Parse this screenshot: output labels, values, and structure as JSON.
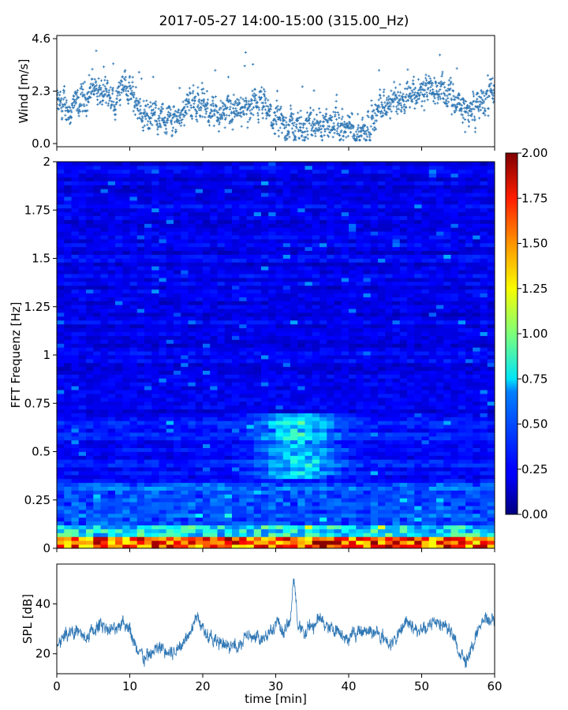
{
  "title": "2017-05-27 14:00-15:00 (315.00_Hz)",
  "chart_data": [
    {
      "type": "scatter",
      "panel": "wind",
      "ylabel": "Wind [m/s]",
      "xlabel": "",
      "xlim": [
        0,
        60
      ],
      "ylim": [
        0,
        4.6
      ],
      "yticks": [
        "0.0",
        "2.3",
        "4.6"
      ],
      "marker": "plus",
      "color": "#2f77b4",
      "trend": {
        "x": [
          0,
          2,
          4,
          5,
          6,
          8,
          9,
          10,
          12,
          14,
          16,
          18,
          20,
          22,
          24,
          26,
          28,
          30,
          32,
          34,
          36,
          38,
          40,
          42,
          44,
          46,
          48,
          50,
          52,
          54,
          56,
          58,
          60
        ],
        "y": [
          1.7,
          1.5,
          2.0,
          2.6,
          2.2,
          1.6,
          3.0,
          2.2,
          1.3,
          1.2,
          1.0,
          1.8,
          1.7,
          1.3,
          1.5,
          1.3,
          1.7,
          0.9,
          0.8,
          0.7,
          0.9,
          0.8,
          0.6,
          0.6,
          1.4,
          1.8,
          2.3,
          2.2,
          2.4,
          2.0,
          1.4,
          1.7,
          2.3
        ]
      }
    },
    {
      "type": "heatmap",
      "panel": "spectrogram",
      "ylabel": "FFT Frequenz [Hz]",
      "xlabel": "",
      "xlim": [
        0,
        60
      ],
      "ylim": [
        0,
        2
      ],
      "yticks": [
        "0",
        "0.25",
        "0.5",
        "0.75",
        "1",
        "1.25",
        "1.5",
        "1.75",
        "2"
      ],
      "colormap": "jet",
      "colorbar": {
        "min": 0,
        "max": 2,
        "ticks": [
          "0.00",
          "0.25",
          "0.50",
          "0.75",
          "1.00",
          "1.25",
          "1.50",
          "1.75",
          "2.00"
        ]
      },
      "notes_low_freq_band": "high values (≈1.5–2.0) below 0.06 Hz, moderate values (≈0.5–1.0) around 0.5 Hz near 30–36 min"
    },
    {
      "type": "line",
      "panel": "spl",
      "ylabel": "SPL [dB]",
      "xlabel": "time [min]",
      "xlim": [
        0,
        60
      ],
      "ylim": [
        12,
        56
      ],
      "xticks": [
        "0",
        "10",
        "20",
        "30",
        "40",
        "50",
        "60"
      ],
      "yticks": [
        "20",
        "40"
      ],
      "color": "#2f77b4",
      "x": [
        0,
        2,
        4,
        6,
        8,
        9,
        10,
        11,
        12,
        14,
        16,
        18,
        19,
        20,
        22,
        24,
        26,
        28,
        30,
        31,
        32,
        32.5,
        33,
        34,
        36,
        38,
        40,
        42,
        44,
        46,
        47,
        48,
        50,
        52,
        54,
        55,
        56,
        57,
        58,
        60
      ],
      "y": [
        24,
        30,
        26,
        32,
        29,
        34,
        30,
        20,
        18,
        22,
        20,
        28,
        36,
        30,
        24,
        22,
        27,
        25,
        33,
        28,
        34,
        50,
        32,
        28,
        34,
        30,
        26,
        30,
        28,
        24,
        28,
        34,
        28,
        34,
        30,
        20,
        18,
        24,
        32,
        34
      ]
    }
  ]
}
